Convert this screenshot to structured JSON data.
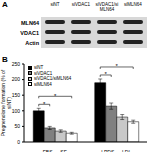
{
  "chart_data": {
    "type": "bar",
    "title": "B",
    "ylabel": "Pregnenolone formation (% of siNT)",
    "categories": [
      "FBS → SF",
      "LPDS → LDL"
    ],
    "series": [
      {
        "name": "siNT",
        "color": "#000000",
        "values": [
          100,
          190
        ],
        "errors": [
          8,
          12
        ]
      },
      {
        "name": "siVDAC1",
        "color": "#808080",
        "values": [
          45,
          115
        ],
        "errors": [
          5,
          10
        ]
      },
      {
        "name": "siVDAC1/siMLN64",
        "color": "#c8c8c8",
        "values": [
          35,
          80
        ],
        "errors": [
          4,
          8
        ]
      },
      {
        "name": "siMLN64",
        "color": "#ffffff",
        "values": [
          28,
          65
        ],
        "errors": [
          3,
          5
        ]
      }
    ],
    "ylim": [
      0,
      250
    ],
    "yticks": [
      0,
      50,
      100,
      150,
      200,
      250
    ],
    "legend": "upper left",
    "annotations": [
      {
        "text": "*",
        "category": 0,
        "from": 0,
        "to": 1
      },
      {
        "text": "*",
        "category": 0,
        "from": 0,
        "to": 3
      },
      {
        "text": "*",
        "category": 1,
        "from": 0,
        "to": 1
      },
      {
        "text": "*",
        "category": 1,
        "from": 0,
        "to": 3
      }
    ]
  },
  "blot": {
    "label": "A",
    "rows": [
      "MLN64",
      "VDAC1",
      "Actin"
    ],
    "lanes": [
      "siNT",
      "siVDAC1",
      "siVDAC1/siMLN64",
      "siMLN64"
    ]
  }
}
